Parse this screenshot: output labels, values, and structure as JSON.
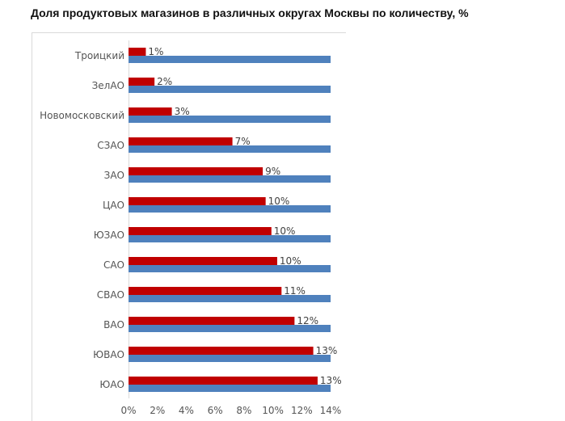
{
  "chart_data": {
    "type": "bar",
    "orientation": "horizontal",
    "title": "Доля продуктовых магазинов в различных округах Москвы по количеству, %",
    "categories": [
      "Троицкий",
      "ЗелАО",
      "Новомосковский",
      "СЗАО",
      "ЗАО",
      "ЦАО",
      "ЮЗАО",
      "САО",
      "СВАО",
      "ВАО",
      "ЮВАО",
      "ЮАО"
    ],
    "series": [
      {
        "values": [
          1.2,
          1.8,
          3.0,
          7.2,
          9.3,
          9.5,
          9.9,
          10.3,
          10.6,
          11.5,
          12.8,
          13.1
        ],
        "labels": [
          "1%",
          "2%",
          "3%",
          "7%",
          "9%",
          "10%",
          "10%",
          "10%",
          "11%",
          "12%",
          "13%",
          "13%"
        ],
        "color": "#c00000"
      },
      {
        "values": [
          14,
          14,
          14,
          14,
          14,
          14,
          14,
          14,
          14,
          14,
          14,
          14
        ],
        "color": "#4f81bd"
      }
    ],
    "xlim": [
      0,
      14
    ],
    "xticks": [
      "0%",
      "2%",
      "4%",
      "6%",
      "8%",
      "10%",
      "12%",
      "14%"
    ],
    "xlabel": "",
    "ylabel": "",
    "grid": false,
    "legend": "none"
  }
}
